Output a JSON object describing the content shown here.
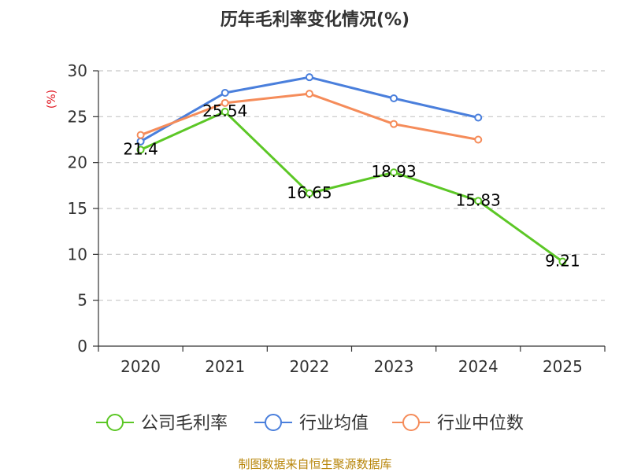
{
  "chart_data": {
    "type": "line",
    "title": "历年毛利率变化情况(%)",
    "ylabel": "(%)",
    "xlabel": "",
    "categories": [
      "2020",
      "2021",
      "2022",
      "2023",
      "2024",
      "2025"
    ],
    "ylim": [
      0,
      30
    ],
    "yticks": [
      0,
      5,
      10,
      15,
      20,
      25,
      30
    ],
    "grid": "horizontal dashed",
    "legend_position": "bottom",
    "series": [
      {
        "name": "公司毛利率",
        "color": "#5cc726",
        "values": [
          21.4,
          25.54,
          16.65,
          18.93,
          15.83,
          9.21
        ],
        "labels": [
          "21.4",
          "25.54",
          "16.65",
          "18.93",
          "15.83",
          "9.21"
        ]
      },
      {
        "name": "行业均值",
        "color": "#4a7fdc",
        "values": [
          22.3,
          27.6,
          29.3,
          27.0,
          24.9,
          null
        ]
      },
      {
        "name": "行业中位数",
        "color": "#f58c5a",
        "values": [
          23.0,
          26.5,
          27.5,
          24.2,
          22.5,
          null
        ]
      }
    ]
  },
  "source": "制图数据来自恒生聚源数据库"
}
